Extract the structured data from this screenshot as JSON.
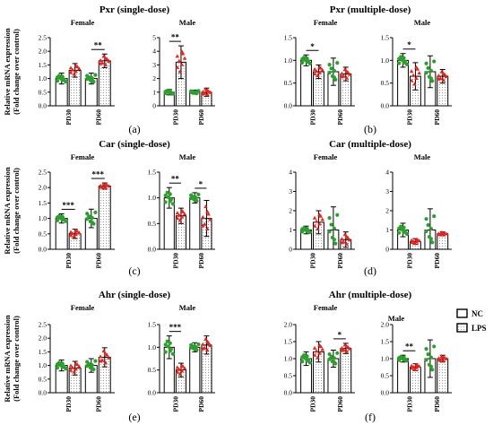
{
  "colors": {
    "nc_points": "#2ca02c",
    "lps_points": "#e8231e",
    "axis": "#000000",
    "nc_fill": "#ffffff",
    "lps_fill": "dotted-light-gray"
  },
  "legend": {
    "nc": "NC",
    "lps": "LPS",
    "placement": "right of panel f"
  },
  "ylabel_line1": "Relative mRNA expression",
  "ylabel_line2": "(Fold change over control)",
  "chart_data": [
    {
      "panel": "(a)",
      "title": "Pxr (single-dose)",
      "type": "bar",
      "subplots": [
        {
          "name": "Female",
          "ylim": [
            0,
            2.5
          ],
          "ticks": [
            "0.0",
            "0.5",
            "1.0",
            "1.5",
            "2.0",
            "2.5"
          ],
          "tick_values": [
            0,
            0.5,
            1,
            1.5,
            2,
            2.5
          ],
          "categories": [
            "PD30",
            "PD60"
          ],
          "series": [
            {
              "name": "NC",
              "values": [
                1.0,
                1.0
              ],
              "errors": [
                0.2,
                0.2
              ]
            },
            {
              "name": "LPS",
              "values": [
                1.3,
                1.65
              ],
              "errors": [
                0.25,
                0.25
              ]
            }
          ],
          "significance": [
            {
              "category": "PD60",
              "label": "**"
            }
          ]
        },
        {
          "name": "Male",
          "ylim": [
            0,
            5
          ],
          "ticks": [
            "0",
            "1",
            "2",
            "3",
            "4",
            "5"
          ],
          "tick_values": [
            0,
            1,
            2,
            3,
            4,
            5
          ],
          "categories": [
            "PD30",
            "PD60"
          ],
          "series": [
            {
              "name": "NC",
              "values": [
                1.0,
                1.0
              ],
              "errors": [
                0.2,
                0.15
              ]
            },
            {
              "name": "LPS",
              "values": [
                3.2,
                1.0
              ],
              "errors": [
                1.2,
                0.3
              ]
            }
          ],
          "significance": [
            {
              "category": "PD30",
              "label": "**"
            }
          ]
        }
      ]
    },
    {
      "panel": "(b)",
      "title": "Pxr (multiple-dose)",
      "type": "bar",
      "subplots": [
        {
          "name": "Female",
          "ylim": [
            0,
            1.5
          ],
          "ticks": [
            "0.0",
            "0.5",
            "1.0",
            "1.5"
          ],
          "tick_values": [
            0,
            0.5,
            1,
            1.5
          ],
          "categories": [
            "PD30",
            "PD60"
          ],
          "series": [
            {
              "name": "NC",
              "values": [
                1.0,
                0.75
              ],
              "errors": [
                0.12,
                0.3
              ]
            },
            {
              "name": "LPS",
              "values": [
                0.75,
                0.7
              ],
              "errors": [
                0.15,
                0.15
              ]
            }
          ],
          "significance": [
            {
              "category": "PD30",
              "label": "*"
            }
          ]
        },
        {
          "name": "Male",
          "ylim": [
            0,
            1.5
          ],
          "ticks": [
            "0.0",
            "0.5",
            "1.0",
            "1.5"
          ],
          "tick_values": [
            0,
            0.5,
            1,
            1.5
          ],
          "categories": [
            "PD30",
            "PD60"
          ],
          "series": [
            {
              "name": "NC",
              "values": [
                1.0,
                0.75
              ],
              "errors": [
                0.15,
                0.35
              ]
            },
            {
              "name": "LPS",
              "values": [
                0.65,
                0.65
              ],
              "errors": [
                0.3,
                0.15
              ]
            }
          ],
          "significance": [
            {
              "category": "PD30",
              "label": "*"
            }
          ]
        }
      ]
    },
    {
      "panel": "(c)",
      "title": "Car (single-dose)",
      "type": "bar",
      "subplots": [
        {
          "name": "Female",
          "ylim": [
            0,
            2.5
          ],
          "ticks": [
            "0.0",
            "0.5",
            "1.0",
            "1.5",
            "2.0",
            "2.5"
          ],
          "tick_values": [
            0,
            0.5,
            1,
            1.5,
            2,
            2.5
          ],
          "categories": [
            "PD30",
            "PD60"
          ],
          "series": [
            {
              "name": "NC",
              "values": [
                1.0,
                1.0
              ],
              "errors": [
                0.15,
                0.3
              ]
            },
            {
              "name": "LPS",
              "values": [
                0.5,
                2.05
              ],
              "errors": [
                0.15,
                0.1
              ]
            }
          ],
          "significance": [
            {
              "category": "PD30",
              "label": "***"
            },
            {
              "category": "PD60",
              "label": "***"
            }
          ]
        },
        {
          "name": "Male",
          "ylim": [
            0,
            1.5
          ],
          "ticks": [
            "0.0",
            "0.5",
            "1.0",
            "1.5"
          ],
          "tick_values": [
            0,
            0.5,
            1,
            1.5
          ],
          "categories": [
            "PD30",
            "PD60"
          ],
          "series": [
            {
              "name": "NC",
              "values": [
                1.0,
                1.0
              ],
              "errors": [
                0.2,
                0.1
              ]
            },
            {
              "name": "LPS",
              "values": [
                0.65,
                0.6
              ],
              "errors": [
                0.15,
                0.35
              ]
            }
          ],
          "significance": [
            {
              "category": "PD30",
              "label": "**"
            },
            {
              "category": "PD60",
              "label": "*"
            }
          ]
        }
      ]
    },
    {
      "panel": "(d)",
      "title": "Car (multiple-dose)",
      "type": "bar",
      "subplots": [
        {
          "name": "Female",
          "ylim": [
            0,
            4
          ],
          "ticks": [
            "0",
            "1",
            "2",
            "3",
            "4"
          ],
          "tick_values": [
            0,
            1,
            2,
            3,
            4
          ],
          "categories": [
            "PD30",
            "PD60"
          ],
          "series": [
            {
              "name": "NC",
              "values": [
                1.0,
                1.0
              ],
              "errors": [
                0.2,
                1.2
              ]
            },
            {
              "name": "LPS",
              "values": [
                1.4,
                0.5
              ],
              "errors": [
                0.6,
                0.4
              ]
            }
          ],
          "significance": []
        },
        {
          "name": "Male",
          "ylim": [
            0,
            4
          ],
          "ticks": [
            "0",
            "1",
            "2",
            "3",
            "4"
          ],
          "tick_values": [
            0,
            1,
            2,
            3,
            4
          ],
          "categories": [
            "PD30",
            "PD60"
          ],
          "series": [
            {
              "name": "NC",
              "values": [
                1.0,
                1.0
              ],
              "errors": [
                0.35,
                1.1
              ]
            },
            {
              "name": "LPS",
              "values": [
                0.4,
                0.8
              ],
              "errors": [
                0.15,
                0.1
              ]
            }
          ],
          "significance": []
        }
      ]
    },
    {
      "panel": "(e)",
      "title": "Ahr (single-dose)",
      "type": "bar",
      "subplots": [
        {
          "name": "Female",
          "ylim": [
            0,
            2.5
          ],
          "ticks": [
            "0.0",
            "0.5",
            "1.0",
            "1.5",
            "2.0",
            "2.5"
          ],
          "tick_values": [
            0,
            0.5,
            1,
            1.5,
            2,
            2.5
          ],
          "categories": [
            "PD30",
            "PD60"
          ],
          "series": [
            {
              "name": "NC",
              "values": [
                1.0,
                1.0
              ],
              "errors": [
                0.2,
                0.25
              ]
            },
            {
              "name": "LPS",
              "values": [
                0.9,
                1.3
              ],
              "errors": [
                0.25,
                0.35
              ]
            }
          ],
          "significance": []
        },
        {
          "name": "Male",
          "ylim": [
            0,
            1.5
          ],
          "ticks": [
            "0.0",
            "0.5",
            "1.0",
            "1.5"
          ],
          "tick_values": [
            0,
            0.5,
            1,
            1.5
          ],
          "categories": [
            "PD30",
            "PD60"
          ],
          "series": [
            {
              "name": "NC",
              "values": [
                1.0,
                1.0
              ],
              "errors": [
                0.25,
                0.1
              ]
            },
            {
              "name": "LPS",
              "values": [
                0.5,
                1.05
              ],
              "errors": [
                0.15,
                0.2
              ]
            }
          ],
          "significance": [
            {
              "category": "PD30",
              "label": "***"
            }
          ]
        }
      ]
    },
    {
      "panel": "(f)",
      "title": "Ahr (multiple-dose)",
      "type": "bar",
      "subplots": [
        {
          "name": "Female",
          "ylim": [
            0,
            2.0
          ],
          "ticks": [
            "0.0",
            "0.5",
            "1.0",
            "1.5",
            "2.0"
          ],
          "tick_values": [
            0,
            0.5,
            1,
            1.5,
            2
          ],
          "categories": [
            "PD30",
            "PD60"
          ],
          "series": [
            {
              "name": "NC",
              "values": [
                1.0,
                1.0
              ],
              "errors": [
                0.2,
                0.25
              ]
            },
            {
              "name": "LPS",
              "values": [
                1.2,
                1.3
              ],
              "errors": [
                0.3,
                0.15
              ]
            }
          ],
          "significance": [
            {
              "category": "PD60",
              "label": "*"
            }
          ]
        },
        {
          "name": "Male",
          "ylim": [
            0,
            2.0
          ],
          "ticks": [
            "0.0",
            "0.5",
            "1.0",
            "1.5",
            "2.0"
          ],
          "tick_values": [
            0,
            0.5,
            1,
            1.5,
            2
          ],
          "categories": [
            "PD30",
            "PD60"
          ],
          "series": [
            {
              "name": "NC",
              "values": [
                1.0,
                1.0
              ],
              "errors": [
                0.1,
                0.55
              ]
            },
            {
              "name": "LPS",
              "values": [
                0.75,
                1.0
              ],
              "errors": [
                0.1,
                0.1
              ]
            }
          ],
          "significance": [
            {
              "category": "PD30",
              "label": "**"
            }
          ]
        }
      ]
    }
  ]
}
